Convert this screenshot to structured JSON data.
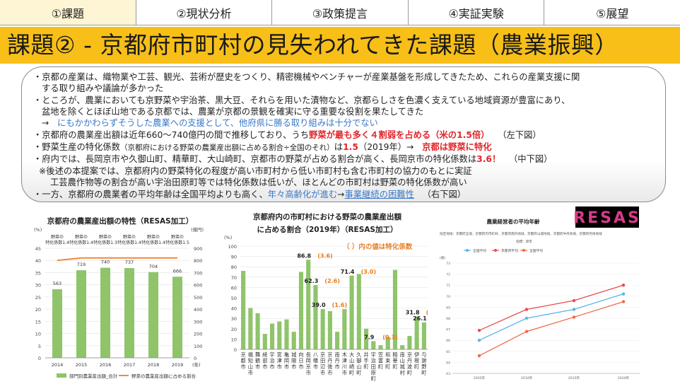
{
  "tabs": [
    {
      "label": "①課題"
    },
    {
      "label": "②現状分析"
    },
    {
      "label": "③政策提言"
    },
    {
      "label": "④実証実験"
    },
    {
      "label": "⑤展望"
    }
  ],
  "title": "課題② - 京都府市町村の見失われてきた課題（農業振興）",
  "text": {
    "b1a": "・京都の産業は、織物業や工芸、観光、芸術が歴史をつくり、精密機械やベンチャーが産業基盤を形成してきたため、これらの産業支援に関",
    "b1b": "する取り組みや議論が多かった",
    "b2a": "・ところが、農業においても京野菜や宇治茶、黒大豆、それらを用いた漬物など、京都らしさを色濃く支えている地域資源が豊富にあり、",
    "b2b": "盆地を除くとほぼ山地である京都では、農業が京都の景観を確実に守る重要な役割を果たしてきた",
    "b3_arrow": "→",
    "b3_text": "にもかかわらずそうした農業への支援として、他府県に勝る取り組みは十分でない",
    "b4_pre": "・京都府の農業産出額は近年660～740億円の間で推移しており、うち",
    "b4_red": "野菜が最も多く４割弱を占める（米の1.5倍）",
    "b4_post": "（左下図）",
    "b5_pre": "・野菜生産の特化係数",
    "b5_small": "（京都府における野菜の農業産出額に占める割合÷全国のそれ）",
    "b5_mid": "は",
    "b5_val": "1.5",
    "b5_year": "（2019年）→",
    "b5_red": "京都は野菜に特化",
    "b6_pre": "・府内では、長岡京市や久御山町、精華町、大山崎町、京都市の野菜が占める割合が高く、長岡京市の特化係数は",
    "b6_red": "3.6！",
    "b6_post": "（中下図）",
    "b7a": "※後述の本提案では、京都府内の野菜特化の程度が高い市町村から低い市町村も含む市町村の協力のもとに実証",
    "b7b": "工芸農作物等の割合が高い宇治田原町等では特化係数は低いが、ほとんどの市町村は野菜の特化係数が高い",
    "b8_pre": "・一方、京都府の農業者の平均年齢は全国平均よりも高く、",
    "b8_blue": "年々高齢化が進む",
    "b8_arrow": "→",
    "b8_blue2": "事業継続の困難性",
    "b8_post": "（右下図）"
  },
  "colors": {
    "banner": "#f7bf18",
    "tab_active": "#fef5d4",
    "bar_green": "#8fc46a",
    "line_orange": "#ef8a3a",
    "value_orange": "#e87a1c",
    "red": "#e0262b",
    "blue": "#3a79c8"
  },
  "chart_data": [
    {
      "type": "bar",
      "title": "京都府の農業産出額の特性（RESAS加工）",
      "categories": [
        "2014",
        "2015",
        "2016",
        "2017",
        "2018",
        "2019"
      ],
      "year_unit": "(年)",
      "y_left_unit": "(%)",
      "y_right_unit": "(億円)",
      "y_left_ticks": [
        "0",
        "5",
        "10",
        "15",
        "20",
        "25",
        "30",
        "35",
        "40",
        "45"
      ],
      "y_right_ticks": [
        "0",
        "100",
        "200",
        "300",
        "400",
        "500",
        "600",
        "700",
        "800",
        "900"
      ],
      "ylim_left": [
        0,
        45
      ],
      "ylim_right": [
        0,
        900
      ],
      "series": [
        {
          "name": "部門別農業産出額_合計",
          "axis": "right",
          "values": [
            563,
            719,
            740,
            737,
            704,
            666
          ]
        },
        {
          "name": "野菜の農業産出額に占める割合",
          "axis": "left",
          "values": [
            40,
            41,
            41,
            41,
            41,
            41
          ]
        }
      ],
      "annotations": [
        {
          "line1": "野菜の",
          "line2": "特化係数1.4"
        },
        {
          "line1": "野菜の",
          "line2": "特化係数1.4"
        },
        {
          "line1": "野菜の",
          "line2": "特化係数1.3"
        },
        {
          "line1": "野菜の",
          "line2": "特化係数1.4"
        },
        {
          "line1": "野菜の",
          "line2": "特化係数1.4"
        },
        {
          "line1": "野菜の",
          "line2": "特化係数1.5"
        }
      ]
    },
    {
      "type": "bar",
      "title_line1": "京都府内の市町村における野菜の農業産出額",
      "title_line2": "に占める割合（2019年）（RESAS加工）",
      "note": "（ ）内の値は特化係数",
      "y_unit": "(%)",
      "y_ticks": [
        "0",
        "10",
        "20",
        "30",
        "40",
        "50",
        "60",
        "70",
        "80",
        "90",
        "100"
      ],
      "ylim": [
        0,
        100
      ],
      "categories": [
        "京都市",
        "福知山市",
        "舞鶴市",
        "綾部市",
        "宇治市",
        "宮津市",
        "亀岡市",
        "城陽市",
        "向日市",
        "長岡京市",
        "八幡市",
        "京田辺市",
        "京丹後市",
        "南丹市",
        "木津川市",
        "大山崎町",
        "久御山町",
        "井手町",
        "宇治田原町",
        "笠置町",
        "和束町",
        "精華町",
        "南山城村",
        "京丹波町",
        "伊根町",
        "与謝野町"
      ],
      "values": [
        76,
        40,
        35,
        15,
        25,
        27,
        29,
        17,
        75,
        86.8,
        62.3,
        39.0,
        37,
        17,
        39,
        71.4,
        73,
        20,
        7.9,
        4,
        12,
        77,
        4,
        13,
        31.8,
        26.1
      ],
      "value_labels": [
        {
          "i": 9,
          "value": "86.8",
          "coef": "(3.6)"
        },
        {
          "i": 10,
          "value": "62.3",
          "coef": "(2.6)"
        },
        {
          "i": 11,
          "value": "39.0",
          "coef": "(1.6)"
        },
        {
          "i": 15,
          "value": "71.4",
          "coef": "(3.0)"
        },
        {
          "i": 18,
          "value": "7.9",
          "coef": "(0.3)"
        },
        {
          "i": 24,
          "value": "31.8",
          "coef": "(1.3)"
        },
        {
          "i": 25,
          "value": "26.1",
          "coef": "(1.1)"
        }
      ]
    },
    {
      "type": "line",
      "title": "農業経営者の平均年齢",
      "logo": "RESAS",
      "subtitle": "指定地域：京都府全域、京都府内市町村、京都府南丹地域、京都府山城地域、京都府中丹地域、京都府丹後地域",
      "sub2": "指標：単年",
      "categories": [
        "2005年",
        "2010年",
        "2015年",
        "2020年"
      ],
      "yaxis_unit": "(歳)",
      "y_ticks": [
        "63",
        "64",
        "65",
        "66",
        "67",
        "68",
        "69",
        "70",
        "71",
        "72",
        "73"
      ],
      "ylim": [
        63,
        73
      ],
      "series": [
        {
          "name": "全国平均",
          "color": "#58b6e8",
          "values": [
            66.0,
            68.0,
            68.8,
            70.2
          ]
        },
        {
          "name": "京都府平均",
          "color": "#e9494f",
          "values": [
            66.9,
            68.8,
            69.6,
            71.0
          ]
        },
        {
          "name": "全国平均",
          "color": "#ef6a4a",
          "values": [
            64.6,
            66.8,
            68.1,
            69.5
          ]
        }
      ]
    }
  ]
}
